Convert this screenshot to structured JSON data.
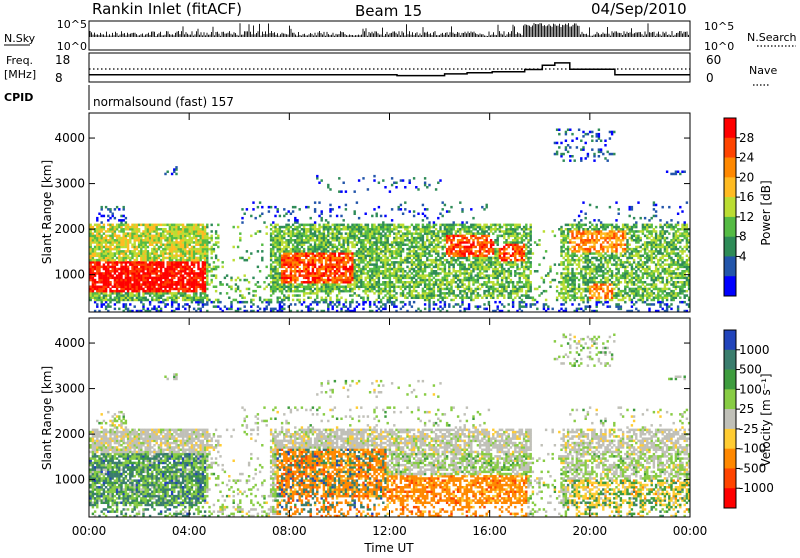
{
  "header": {
    "station": "Rankin Inlet (fitACF)",
    "beam": "Beam 15",
    "date": "04/Sep/2010"
  },
  "noise_panel": {
    "left_label": "N.Sky",
    "right_label": "N.Search",
    "left_ticks": [
      "10^5",
      "10^0"
    ],
    "right_ticks": [
      "10^5",
      "10^0"
    ]
  },
  "freq_panel": {
    "left_label_line1": "Freq.",
    "left_label_line2": "[MHz]",
    "right_label": "Nave",
    "left_ticks": [
      "18",
      "8"
    ],
    "right_ticks": [
      "60",
      "0"
    ],
    "freq_steps": [
      {
        "t": 0,
        "v": 10.5
      },
      {
        "t": 8,
        "v": 10.5
      },
      {
        "t": 12.3,
        "v": 10.2
      },
      {
        "t": 14.2,
        "v": 10.8
      },
      {
        "t": 15.1,
        "v": 11.2
      },
      {
        "t": 16.1,
        "v": 11.5
      },
      {
        "t": 17.4,
        "v": 12.3
      },
      {
        "t": 18.1,
        "v": 13.8
      },
      {
        "t": 18.6,
        "v": 14.6
      },
      {
        "t": 19.2,
        "v": 12.4
      },
      {
        "t": 21.0,
        "v": 10.5
      },
      {
        "t": 24,
        "v": 10.5
      }
    ],
    "nave_level": 12.2
  },
  "cpid": {
    "label": "CPID",
    "value": "normalsound (fast) 157"
  },
  "power_panel": {
    "ylabel": "Slant Range [km]",
    "yticks": [
      "1000",
      "2000",
      "3000",
      "4000"
    ],
    "colorbar_label": "Power [dB]",
    "colorbar_ticks": [
      "28",
      "24",
      "20",
      "16",
      "12",
      "8",
      "4"
    ],
    "colors": [
      "#ff0000",
      "#ff4400",
      "#ff8800",
      "#ffbb22",
      "#bbdd33",
      "#55bb44",
      "#2e8b57",
      "#2255aa",
      "#0000ff"
    ]
  },
  "velocity_panel": {
    "ylabel": "Slant Range [km]",
    "yticks": [
      "1000",
      "2000",
      "3000",
      "4000"
    ],
    "colorbar_label": "Velocity [m s⁻¹]",
    "colorbar_ticks": [
      "1000",
      "500",
      "100",
      "25",
      "-25",
      "-100",
      "-500",
      "-1000"
    ],
    "colors": [
      "#2244bb",
      "#3a7d6d",
      "#3e9c3e",
      "#88cc44",
      "#c0c0b8",
      "#ffcc33",
      "#ff8800",
      "#ff4400",
      "#ff0000"
    ]
  },
  "xaxis": {
    "label": "Time UT",
    "ticks": [
      "00:00",
      "04:00",
      "08:00",
      "12:00",
      "16:00",
      "20:00",
      "00:00"
    ]
  },
  "chart_data": {
    "type": "heatmap",
    "title": "Rankin Inlet (fitACF)",
    "x_range_hours": [
      0,
      24
    ],
    "y_range_km": [
      180,
      4550
    ],
    "power_regions": [
      {
        "t0": 0.0,
        "t1": 4.8,
        "r0": 600,
        "r1": 1300,
        "power_db": 26
      },
      {
        "t0": 0.0,
        "t1": 4.6,
        "r0": 1300,
        "r1": 2100,
        "power_db": 16
      },
      {
        "t0": 7.6,
        "t1": 10.5,
        "r0": 800,
        "r1": 1500,
        "power_db": 24
      },
      {
        "t0": 14.2,
        "t1": 16.0,
        "r0": 1400,
        "r1": 1900,
        "power_db": 26
      },
      {
        "t0": 16.4,
        "t1": 17.4,
        "r0": 1300,
        "r1": 1700,
        "power_db": 24
      },
      {
        "t0": 19.1,
        "t1": 21.4,
        "r0": 1500,
        "r1": 2000,
        "power_db": 22
      },
      {
        "t0": 20.0,
        "t1": 20.9,
        "r0": 450,
        "r1": 800,
        "power_db": 20
      }
    ],
    "velocity_regions": [
      {
        "t0": 0.0,
        "t1": 4.6,
        "r0": 600,
        "r1": 1500,
        "velocity": 100
      },
      {
        "t0": 7.4,
        "t1": 11.5,
        "r0": 600,
        "r1": 1700,
        "velocity": -500
      },
      {
        "t0": 8.0,
        "t1": 20.0,
        "r0": 1600,
        "r1": 2100,
        "velocity": 0
      },
      {
        "t0": 12.0,
        "t1": 16.5,
        "r0": 500,
        "r1": 1000,
        "velocity": -500
      }
    ]
  }
}
